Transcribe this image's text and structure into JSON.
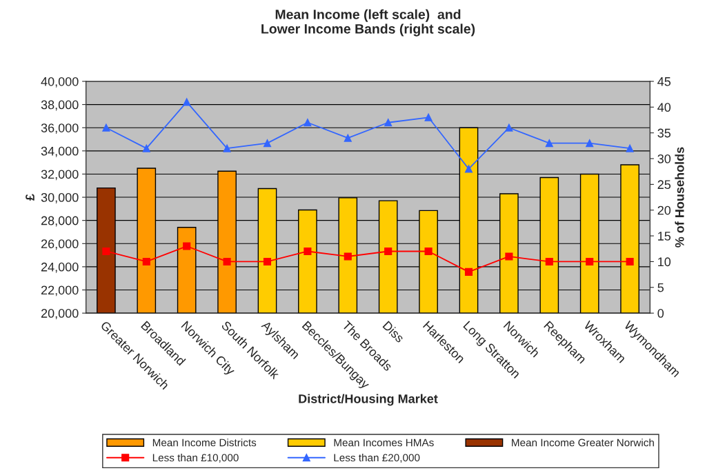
{
  "chart_data": {
    "type": "bar",
    "title": "Mean Income (left scale)  and\nLower Income Bands (right scale)",
    "xlabel": "District/Housing Market",
    "ylabel": "£",
    "y2label": "% of Households",
    "categories": [
      "Greater Norwich",
      "Broadland",
      "Norwich City",
      "South Norfolk",
      "Aylsham",
      "Beccles/Bungay",
      "The Broads",
      "Diss",
      "Harleston",
      "Long Stratton",
      "Norwich",
      "Reepham",
      "Wroxham",
      "Wymondham"
    ],
    "series": [
      {
        "name": "Mean Income Districts",
        "color": "#ff9900",
        "values": [
          null,
          32500,
          27400,
          32250,
          null,
          null,
          null,
          null,
          null,
          null,
          null,
          null,
          null,
          null
        ]
      },
      {
        "name": "Mean Incomes HMAs",
        "color": "#ffcc00",
        "values": [
          null,
          null,
          null,
          null,
          30750,
          28900,
          29950,
          29700,
          28850,
          36000,
          30300,
          31700,
          32000,
          32800
        ]
      },
      {
        "name": "Mean Income Greater Norwich",
        "color": "#993300",
        "values": [
          30800,
          null,
          null,
          null,
          null,
          null,
          null,
          null,
          null,
          null,
          null,
          null,
          null,
          null
        ]
      },
      {
        "name": "Less than £10,000",
        "type": "line",
        "axis": "y2",
        "color": "#ff0000",
        "marker": "square",
        "values": [
          12,
          10,
          13,
          10,
          10,
          12,
          11,
          12,
          12,
          8,
          11,
          10,
          10,
          10
        ]
      },
      {
        "name": "Less than £20,000",
        "type": "line",
        "axis": "y2",
        "color": "#3366ff",
        "marker": "triangle",
        "values": [
          36,
          32,
          41,
          32,
          33,
          37,
          34,
          37,
          38,
          28,
          36,
          33,
          33,
          32
        ]
      }
    ],
    "ylim": [
      20000,
      40000
    ],
    "yticks": [
      {
        "value": 20000,
        "label": "20,000"
      },
      {
        "value": 22000,
        "label": "22,000"
      },
      {
        "value": 24000,
        "label": "24,000"
      },
      {
        "value": 26000,
        "label": "26,000"
      },
      {
        "value": 28000,
        "label": "28,000"
      },
      {
        "value": 30000,
        "label": "30,000"
      },
      {
        "value": 32000,
        "label": "32,000"
      },
      {
        "value": 34000,
        "label": "34,000"
      },
      {
        "value": 36000,
        "label": "36,000"
      },
      {
        "value": 38000,
        "label": "38,000"
      },
      {
        "value": 40000,
        "label": "40,000"
      }
    ],
    "y2lim": [
      0,
      45
    ],
    "y2ticks": [
      0,
      5,
      10,
      15,
      20,
      25,
      30,
      35,
      40,
      45
    ],
    "grid": "y",
    "legend": "bottom"
  }
}
